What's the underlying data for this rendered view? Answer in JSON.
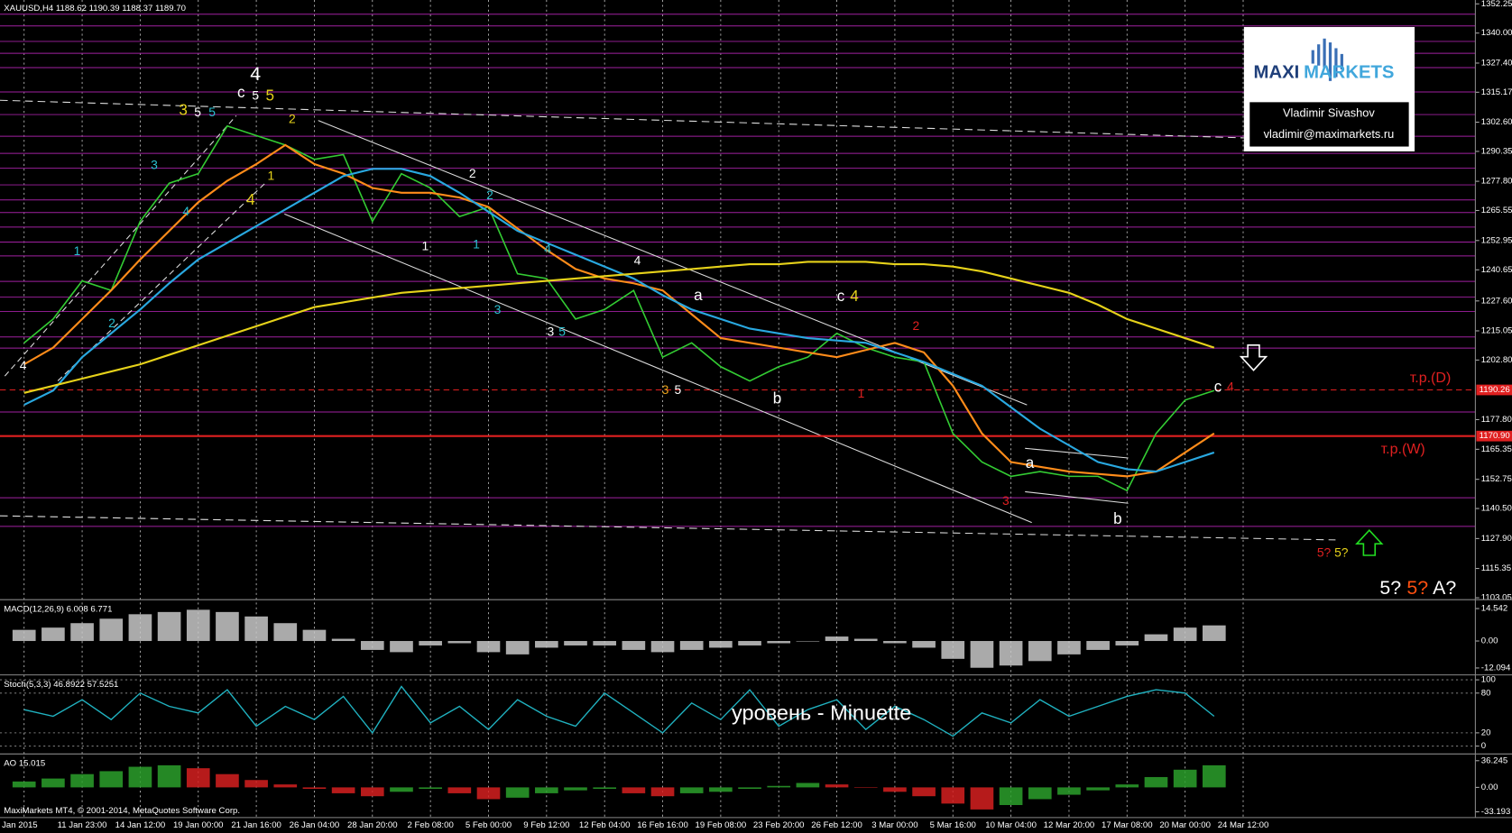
{
  "chart_data": [
    {
      "type": "line",
      "title": "XAUUSD,H4  1188.62 1190.39 1188.37 1189.70",
      "categories": [
        "Jan 2015",
        null,
        "11 Jan 23:00",
        null,
        "14 Jan 12:00",
        null,
        "19 Jan 00:00",
        null,
        "21 Jan 16:00",
        null,
        "26 Jan 04:00",
        null,
        "28 Jan 20:00",
        null,
        "2 Feb 08:00",
        null,
        "5 Feb 00:00",
        null,
        "9 Feb 12:00",
        null,
        "12 Feb 04:00",
        null,
        "16 Feb 16:00",
        null,
        "19 Feb 08:00",
        null,
        "23 Feb 20:00",
        null,
        "26 Feb 12:00",
        null,
        "3 Mar 00:00",
        null,
        "5 Mar 16:00",
        null,
        "10 Mar 04:00",
        null,
        "12 Mar 20:00",
        null,
        "17 Mar 08:00",
        null,
        "20 Mar 00:00",
        null,
        "24 Mar 12:00"
      ],
      "series": [
        {
          "color": "#33cc33",
          "values": [
            1210,
            1220,
            1236,
            1232,
            1261,
            1277,
            1281,
            1301,
            1297,
            1293,
            1287,
            1289,
            1261,
            1281,
            1275,
            1263,
            1267,
            1239,
            1237,
            1220,
            1224,
            1232,
            1204,
            1210,
            1200,
            1194,
            1200,
            1204,
            1214,
            1208,
            1204,
            1202,
            1172,
            1160,
            1154,
            1156,
            1154,
            1154,
            1148,
            1172,
            1186,
            1190,
            null
          ]
        },
        {
          "color": "#ff8c1a",
          "values": [
            1201,
            1208,
            1220,
            1232,
            1245,
            1257,
            1269,
            1278,
            1285,
            1293,
            1285,
            1281,
            1275,
            1273,
            1273,
            1271,
            1267,
            1258,
            1249,
            1241,
            1237,
            1235,
            1232,
            1222,
            1212,
            1210,
            1208,
            1206,
            1204,
            1207,
            1210,
            1206,
            1192,
            1172,
            1160,
            1158,
            1156,
            1155,
            1154,
            1156,
            1164,
            1172,
            null
          ]
        },
        {
          "color": "#29a8e0",
          "values": [
            1184,
            1190,
            1204,
            1214,
            1224,
            1235,
            1245,
            1252,
            1259,
            1266,
            1273,
            1280,
            1283,
            1283,
            1280,
            1273,
            1265,
            1257,
            1252,
            1247,
            1242,
            1237,
            1230,
            1224,
            1220,
            1216,
            1214,
            1212,
            1211,
            1210,
            1206,
            1202,
            1197,
            1192,
            1183,
            1174,
            1167,
            1160,
            1157,
            1156,
            1160,
            1164,
            null
          ]
        },
        {
          "color": "#e6d21a",
          "values": [
            1189,
            1192,
            1195,
            1198,
            1201,
            1205,
            1209,
            1213,
            1217,
            1221,
            1225,
            1227,
            1229,
            1231,
            1232,
            1233,
            1234,
            1235,
            1236,
            1237,
            1238,
            1239,
            1240,
            1241,
            1242,
            1243,
            1243,
            1244,
            1244,
            1244,
            1243,
            1243,
            1242,
            1240,
            1237,
            1234,
            1231,
            1226,
            1220,
            1216,
            1212,
            1208,
            null
          ]
        }
      ],
      "ylim": [
        1102.65,
        1353.87
      ],
      "yticks": [
        1352.25,
        {
          "value": 1340,
          "label": "1340.00"
        },
        {
          "value": 1327.4,
          "label": "1327.40"
        },
        1315.17,
        {
          "value": 1302.6,
          "label": "1302.60"
        },
        1290.35,
        {
          "value": 1277.8,
          "label": "1277.80"
        },
        1265.55,
        1252.95,
        1240.65,
        {
          "value": 1227.6,
          "label": "1227.60"
        },
        1215.05,
        {
          "value": 1202.8,
          "label": "1202.80"
        },
        {
          "value": 1177.8,
          "label": "1177.80"
        },
        1165.35,
        1152.75,
        {
          "value": 1140.5,
          "label": "1140.50"
        },
        {
          "value": 1127.9,
          "label": "1127.90"
        },
        1115.35,
        1103.05
      ],
      "xgrid": true,
      "levels": {
        "color": "#a020a0",
        "values": [
          1347.9,
          1343.0,
          1336.5,
          1331.5,
          1325.5,
          1315.3,
          1305.8,
          1296.7,
          1289.5,
          1283.3,
          1276.3,
          1270.0,
          1264.7,
          1258.6,
          1252.3,
          1246.5,
          1235.8,
          1229.2,
          1223.2,
          1212.5,
          1207.8,
          1181.0,
          1145.0,
          1133.0
        ]
      },
      "hlines": [
        {
          "label": "т.р.(D)",
          "value": 1190.26,
          "color": "#e02020",
          "dashed": true
        },
        {
          "label": "т.р.(W)",
          "value": 1170.9,
          "value_label": "1170.90",
          "color": "#e02020",
          "dashed": false
        }
      ],
      "annotations": [
        {
          "text": "4",
          "color": "#ffffff"
        },
        {
          "text": "c",
          "color": "#ffffff"
        },
        {
          "text": "5",
          "color": "#ffffff"
        },
        {
          "text": "5",
          "color": "#e6d21a"
        },
        {
          "text": "3",
          "color": "#e6d21a"
        },
        {
          "text": "5",
          "color": "#ffffff"
        },
        {
          "text": "5",
          "color": "#29c0d0"
        },
        {
          "text": "3",
          "color": "#29c0d0"
        },
        {
          "text": "4",
          "color": "#29c0d0"
        },
        {
          "text": "4",
          "color": "#e6d21a"
        },
        {
          "text": "1",
          "color": "#e6d21a"
        },
        {
          "text": "2",
          "color": "#e6d21a"
        },
        {
          "text": "1",
          "color": "#29c0d0"
        },
        {
          "text": "2",
          "color": "#29c0d0"
        },
        {
          "text": "4",
          "color": "#ffffff"
        },
        {
          "text": "2",
          "color": "#ffffff"
        },
        {
          "text": "2",
          "color": "#29c0d0"
        },
        {
          "text": "1",
          "color": "#ffffff"
        },
        {
          "text": "1",
          "color": "#29c0d0"
        },
        {
          "text": "4",
          "color": "#29c0d0"
        },
        {
          "text": "4",
          "color": "#ffffff"
        },
        {
          "text": "3",
          "color": "#29c0d0"
        },
        {
          "text": "3",
          "color": "#ffffff"
        },
        {
          "text": "5",
          "color": "#29c0d0"
        },
        {
          "text": "a",
          "color": "#ffffff"
        },
        {
          "text": "b",
          "color": "#ffffff"
        },
        {
          "text": "3",
          "color": "#e6a01a"
        },
        {
          "text": "5",
          "color": "#ffffff"
        },
        {
          "text": "c",
          "color": "#ffffff"
        },
        {
          "text": "4",
          "color": "#e6d21a"
        },
        {
          "text": "2",
          "color": "#e02020"
        },
        {
          "text": "1",
          "color": "#e02020"
        },
        {
          "text": "a",
          "color": "#ffffff"
        },
        {
          "text": "3",
          "color": "#e02020"
        },
        {
          "text": "b",
          "color": "#ffffff"
        },
        {
          "text": "c",
          "color": "#ffffff"
        },
        {
          "text": "4",
          "color": "#e02020"
        },
        {
          "text": "5?",
          "color": "#e02020"
        },
        {
          "text": "5?",
          "color": "#e6d21a"
        },
        {
          "text": "5?",
          "color": "#ffffff"
        },
        {
          "text": "5?",
          "color": "#ff5010"
        },
        {
          "text": "A?",
          "color": "#ffffff"
        }
      ]
    },
    {
      "type": "bar",
      "title": "MACD(12,26,9) 6.008 6.771",
      "color": "#c8c8c8",
      "values": [
        5,
        6,
        8,
        10,
        12,
        13,
        14,
        13,
        11,
        8,
        5,
        1,
        -4,
        -5,
        -2,
        -1,
        -5,
        -6,
        -3,
        -2,
        -2,
        -4,
        -5,
        -4,
        -3,
        -2,
        -1,
        0,
        2,
        1,
        -1,
        -3,
        -8,
        -12,
        -11,
        -9,
        -6,
        -4,
        -2,
        3,
        6,
        7,
        null
      ],
      "ylim": [
        -14.76,
        18.09
      ],
      "yticks": [
        14.542,
        {
          "value": 0,
          "label": "0.00"
        },
        -12.094
      ]
    },
    {
      "type": "line",
      "title": "Stoch(5,3,3) 46.8922 57.5251",
      "color": "#20b2c0",
      "values": [
        55,
        45,
        70,
        40,
        80,
        60,
        50,
        85,
        30,
        60,
        40,
        75,
        20,
        90,
        35,
        60,
        25,
        70,
        45,
        30,
        80,
        50,
        20,
        65,
        40,
        85,
        30,
        55,
        70,
        25,
        60,
        40,
        15,
        50,
        35,
        70,
        45,
        60,
        75,
        85,
        80,
        45,
        null
      ],
      "ylim": [
        -10.4,
        106
      ],
      "yticks": [
        100,
        80,
        20,
        0
      ],
      "annotation": "уровень - Minuette"
    },
    {
      "type": "bar",
      "title": "AO 15.015",
      "up_color": "#2ca02c",
      "down_color": "#d62020",
      "values": [
        8,
        12,
        18,
        22,
        28,
        30,
        26,
        18,
        10,
        4,
        -2,
        -8,
        -12,
        -6,
        -2,
        -8,
        -16,
        -14,
        -8,
        -4,
        -2,
        -8,
        -12,
        -8,
        -6,
        -2,
        2,
        6,
        4,
        0,
        -6,
        -12,
        -22,
        -30,
        -24,
        -16,
        -10,
        -4,
        4,
        14,
        24,
        30,
        null
      ],
      "ylim": [
        -39.7,
        44.1
      ],
      "yticks": [
        36.245,
        {
          "value": 0,
          "label": "0.00"
        },
        -33.193
      ]
    }
  ],
  "logo": {
    "brand_1": "MAXI",
    "brand_2": "MARKETS",
    "name": "Vladimir Sivashov",
    "email": "vladimir@maximarkets.ru"
  },
  "footer": "MaxiMarkets MT4, © 2001-2014, MetaQuotes Software Corp."
}
